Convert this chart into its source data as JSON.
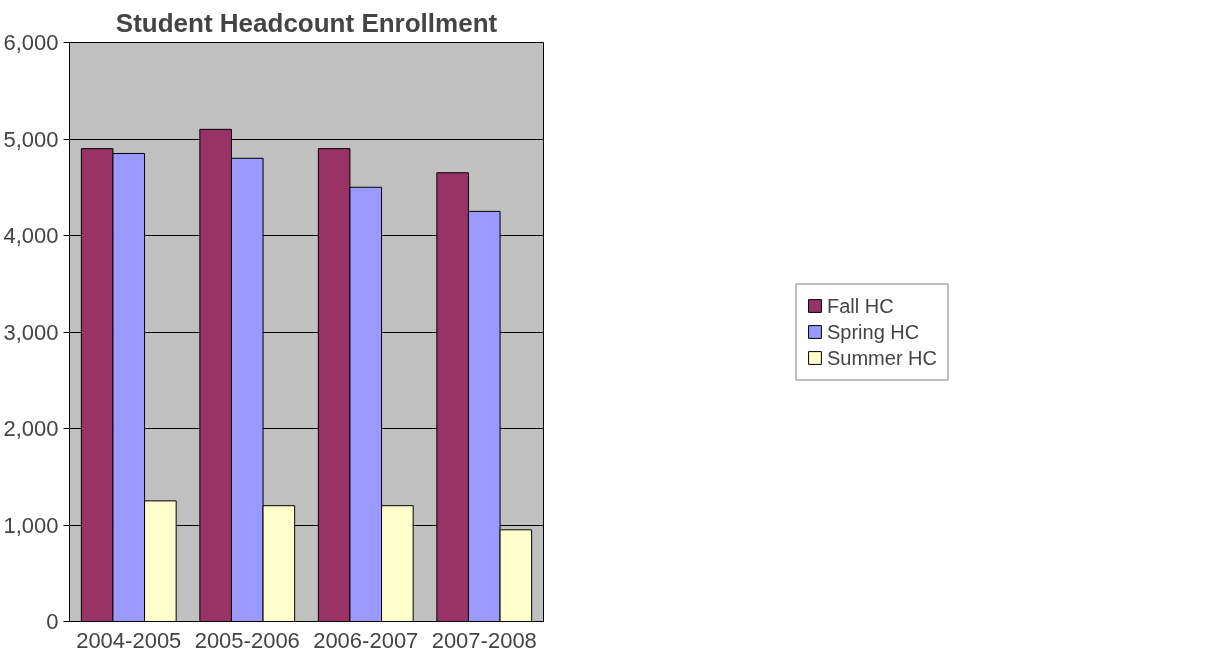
{
  "chart_data": {
    "type": "bar",
    "title": "Student Headcount Enrollment",
    "categories": [
      "2004-2005",
      "2005-2006",
      "2006-2007",
      "2007-2008"
    ],
    "series": [
      {
        "name": "Fall HC",
        "color": "#993366",
        "values": [
          4900,
          5100,
          4900,
          4650
        ]
      },
      {
        "name": "Spring HC",
        "color": "#9999ff",
        "values": [
          4850,
          4800,
          4500,
          4250
        ]
      },
      {
        "name": "Summer HC",
        "color": "#ffffcc",
        "values": [
          1250,
          1200,
          1200,
          950
        ]
      }
    ],
    "ylim": [
      0,
      6000
    ],
    "yticks": [
      {
        "value": 0,
        "label": "0"
      },
      {
        "value": 1000,
        "label": "1,000"
      },
      {
        "value": 2000,
        "label": "2,000"
      },
      {
        "value": 3000,
        "label": "3,000"
      },
      {
        "value": 4000,
        "label": "4,000"
      },
      {
        "value": 5000,
        "label": "5,000"
      },
      {
        "value": 6000,
        "label": "6,000"
      }
    ],
    "grid": "y",
    "legend": "right"
  }
}
